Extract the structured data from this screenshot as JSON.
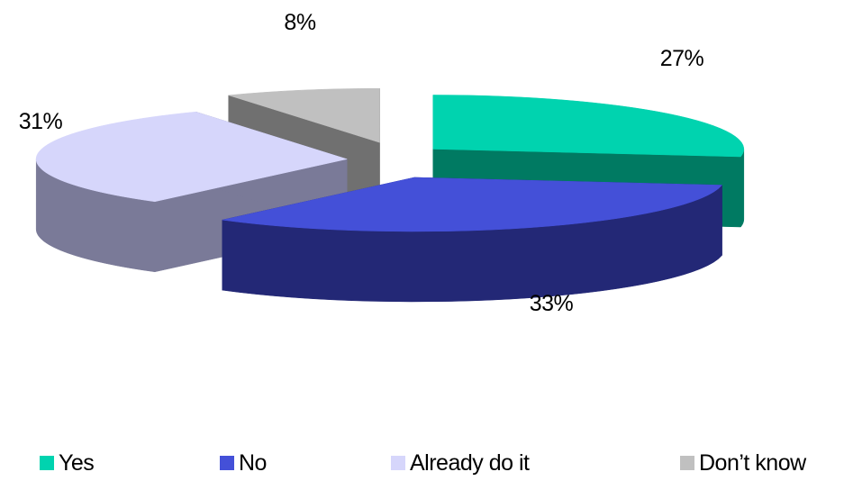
{
  "chart_data": {
    "type": "pie",
    "style": "3d-exploded",
    "categories": [
      "Yes",
      "No",
      "Already do it",
      "Don’t know"
    ],
    "values": [
      27,
      33,
      31,
      8
    ],
    "value_labels": [
      "27%",
      "33%",
      "31%",
      "8%"
    ],
    "colors": {
      "top": [
        "#00d3af",
        "#4450d8",
        "#d6d6fb",
        "#c0c0c0"
      ],
      "side": [
        "#007a62",
        "#232876",
        "#7a7a98",
        "#707070"
      ]
    },
    "legend_position": "bottom"
  }
}
